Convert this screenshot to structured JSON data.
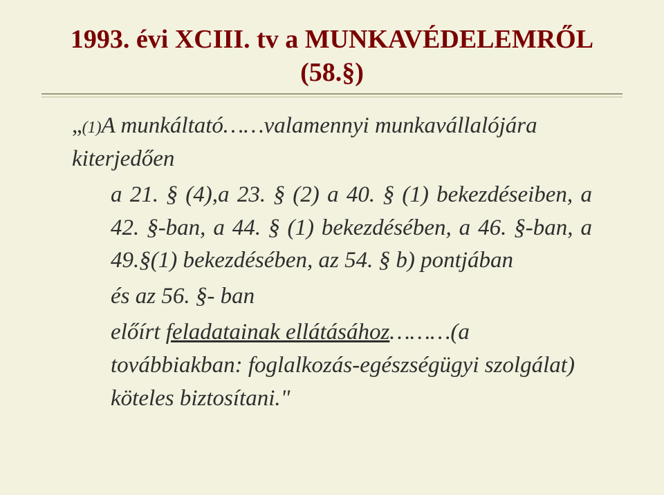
{
  "background_color": "#f2f2df",
  "title": {
    "text": "1993. évi XCIII. tv a MUNKAVÉDELEMRŐL (58.§)",
    "color": "#7a0000",
    "fontsize": 38,
    "font_weight": "bold"
  },
  "rules": {
    "color1": "#9a9a7d",
    "color2": "#bfbf9d"
  },
  "body": {
    "color": "#2e2e2e",
    "fontsize": 33,
    "font_style": "italic",
    "p1_quote_open": "„",
    "p1_sub": "(1)",
    "p1_rest": "A munkáltató……valamennyi munkavállalójára kiterjedően",
    "p2": "a 21. § (4),a 23. § (2) a 40. § (1) bekezdéseiben, a 42. §-ban, a 44. § (1) bekezdésében, a 46. §-ban, a 49.§(1) bekezdésében, az 54. § b) pontjában",
    "p3": "és az 56. §- ban",
    "p4_pre": "előírt ",
    "p4_underlined": "feladatainak ellátásához",
    "p4_mid": "………(a továbbiakban: ",
    "p4_term": "foglalkozás-egészségügyi szolgálat",
    "p4_post": ") köteles biztosítani.\""
  }
}
